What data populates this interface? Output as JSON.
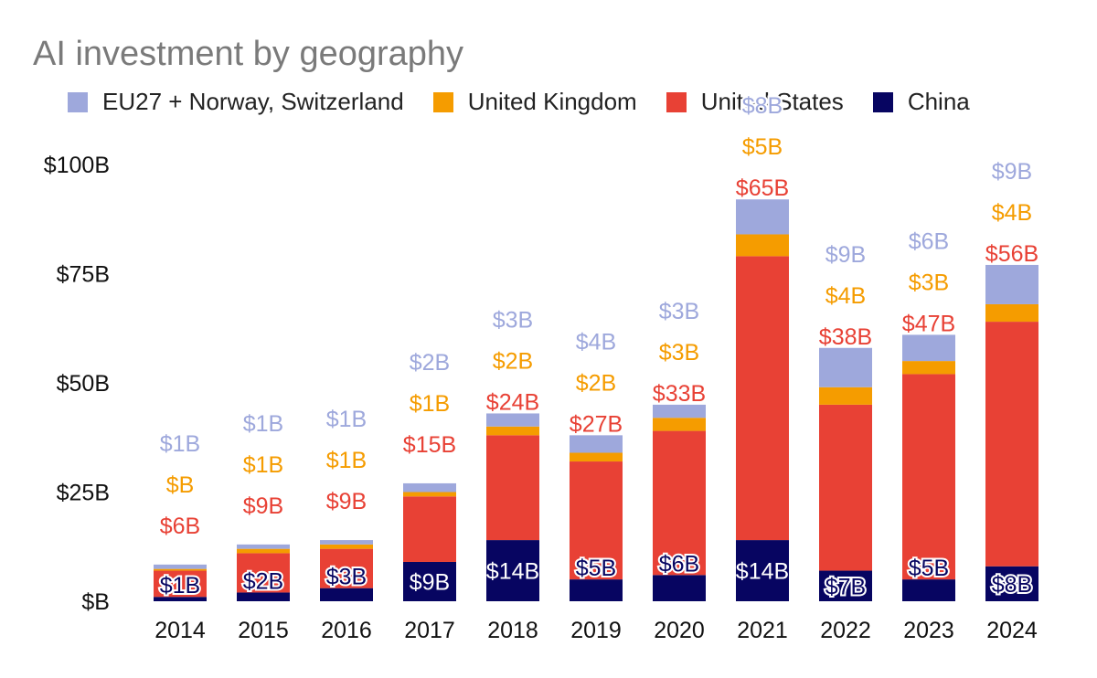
{
  "chart_data": {
    "type": "bar",
    "stacked": true,
    "title": "AI investment by geography",
    "legend_position": "top",
    "categories": [
      "2014",
      "2015",
      "2016",
      "2017",
      "2018",
      "2019",
      "2020",
      "2021",
      "2022",
      "2023",
      "2024"
    ],
    "series": [
      {
        "name": "China",
        "color": "#070561",
        "values": [
          1,
          2,
          3,
          9,
          14,
          5,
          6,
          14,
          7,
          5,
          8
        ],
        "labels": [
          "$1B",
          "$2B",
          "$3B",
          "$9B",
          "$14B",
          "$5B",
          "$6B",
          "$14B",
          "$7B",
          "$5B",
          "$8B"
        ]
      },
      {
        "name": "United States",
        "color": "#e84135",
        "values": [
          6,
          9,
          9,
          15,
          24,
          27,
          33,
          65,
          38,
          47,
          56
        ],
        "labels": [
          "$6B",
          "$9B",
          "$9B",
          "$15B",
          "$24B",
          "$27B",
          "$33B",
          "$65B",
          "$38B",
          "$47B",
          "$56B"
        ]
      },
      {
        "name": "United Kingdom",
        "color": "#f59c00",
        "values": [
          0.4,
          1,
          1,
          1,
          2,
          2,
          3,
          5,
          4,
          3,
          4
        ],
        "labels": [
          "$B",
          "$1B",
          "$1B",
          "$1B",
          "$2B",
          "$2B",
          "$3B",
          "$5B",
          "$4B",
          "$3B",
          "$4B"
        ]
      },
      {
        "name": "EU27 + Norway, Switzerland",
        "color": "#9ea8dc",
        "values": [
          1,
          1,
          1,
          2,
          3,
          4,
          3,
          8,
          9,
          6,
          9
        ],
        "labels": [
          "$1B",
          "$1B",
          "$1B",
          "$2B",
          "$3B",
          "$4B",
          "$3B",
          "$8B",
          "$9B",
          "$6B",
          "$9B"
        ]
      }
    ],
    "legend_order": [
      "EU27 + Norway, Switzerland",
      "United Kingdom",
      "United States",
      "China"
    ],
    "ylim": [
      0,
      100
    ],
    "yticks": [
      0,
      25,
      50,
      75,
      100
    ],
    "ytick_labels": [
      "$B",
      "$25B",
      "$50B",
      "$75B",
      "$100B"
    ],
    "xlabel": "",
    "ylabel": "",
    "grid": false
  }
}
